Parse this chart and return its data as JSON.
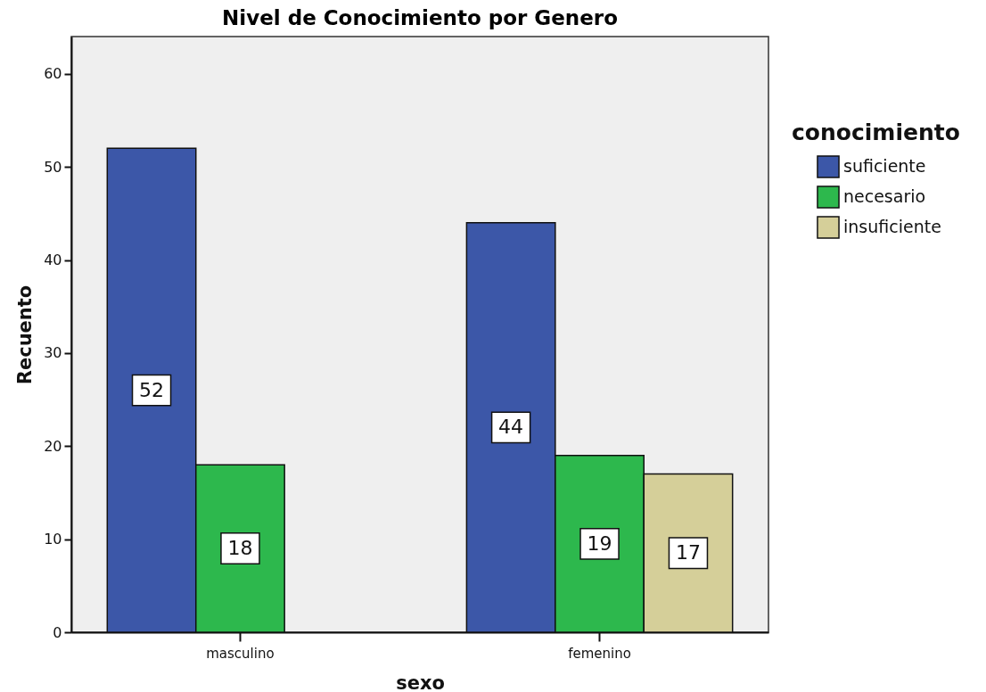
{
  "chart_data": {
    "type": "bar",
    "title": "Nivel de Conocimiento por Genero",
    "xlabel": "sexo",
    "ylabel": "Recuento",
    "legend_title": "conocimiento",
    "categories": [
      "masculino",
      "femenino"
    ],
    "series": [
      {
        "name": "suficiente",
        "color": "#3c57a8",
        "values": [
          52,
          44
        ]
      },
      {
        "name": "necesario",
        "color": "#2db84d",
        "values": [
          18,
          19
        ]
      },
      {
        "name": "insuficiente",
        "color": "#d5cf99",
        "values": [
          null,
          17
        ]
      }
    ],
    "ylim": [
      0,
      64
    ],
    "yticks": [
      0,
      10,
      20,
      30,
      40,
      50,
      60
    ],
    "data_labels": true,
    "legend": "right"
  }
}
